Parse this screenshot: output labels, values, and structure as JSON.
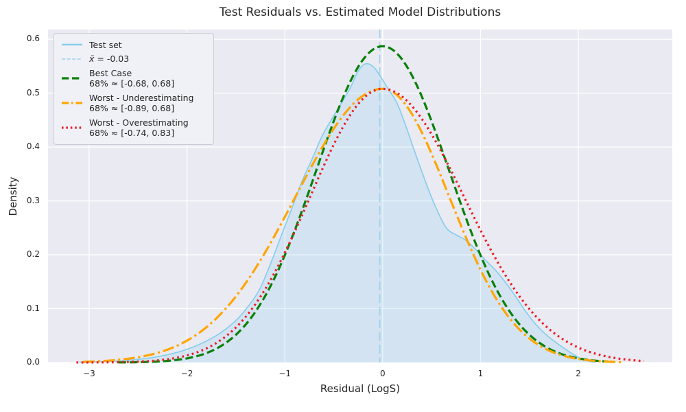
{
  "chart_data": {
    "type": "line",
    "title": "Test Residuals vs. Estimated Model Distributions",
    "xlabel": "Residual (LogS)",
    "ylabel": "Density",
    "xlim": [
      -3.42,
      2.96
    ],
    "ylim": [
      0,
      0.618
    ],
    "grid": true,
    "legend_position": "upper left",
    "xticks": [
      -3,
      -2,
      -1,
      0,
      1,
      2
    ],
    "xtick_labels": [
      "−3",
      "−2",
      "−1",
      "0",
      "1",
      "2"
    ],
    "yticks": [
      0.0,
      0.1,
      0.2,
      0.3,
      0.4,
      0.5,
      0.6
    ],
    "ytick_labels": [
      "0.0",
      "0.1",
      "0.2",
      "0.3",
      "0.4",
      "0.5",
      "0.6"
    ],
    "colors": {
      "figure_bg": "#FFFFFF",
      "axes_bg": "#EAEAF2",
      "grid": "#FFFFFF",
      "text": "#262626"
    },
    "mean_line": {
      "x": -0.03,
      "label": "x̄ = -0.03",
      "color": "#9ED2EC",
      "dash": "dashed",
      "width": 1.8
    },
    "series": [
      {
        "name": "Test set",
        "kind": "kde",
        "color": "#87CEEB",
        "fill": "rgba(135,206,235,0.22)",
        "dash": "solid",
        "width": 1.7,
        "points": [
          [
            -3.1,
            0.0005
          ],
          [
            -2.9,
            0.0015
          ],
          [
            -2.7,
            0.003
          ],
          [
            -2.5,
            0.006
          ],
          [
            -2.3,
            0.011
          ],
          [
            -2.1,
            0.019
          ],
          [
            -1.95,
            0.028
          ],
          [
            -1.8,
            0.04
          ],
          [
            -1.65,
            0.056
          ],
          [
            -1.5,
            0.078
          ],
          [
            -1.38,
            0.103
          ],
          [
            -1.26,
            0.135
          ],
          [
            -1.14,
            0.186
          ],
          [
            -1.02,
            0.243
          ],
          [
            -0.92,
            0.29
          ],
          [
            -0.82,
            0.338
          ],
          [
            -0.72,
            0.378
          ],
          [
            -0.62,
            0.42
          ],
          [
            -0.52,
            0.452
          ],
          [
            -0.42,
            0.482
          ],
          [
            -0.33,
            0.51
          ],
          [
            -0.26,
            0.538
          ],
          [
            -0.2,
            0.552
          ],
          [
            -0.14,
            0.554
          ],
          [
            -0.08,
            0.546
          ],
          [
            -0.02,
            0.53
          ],
          [
            0.05,
            0.51
          ],
          [
            0.15,
            0.48
          ],
          [
            0.25,
            0.432
          ],
          [
            0.35,
            0.38
          ],
          [
            0.46,
            0.325
          ],
          [
            0.55,
            0.285
          ],
          [
            0.65,
            0.25
          ],
          [
            0.75,
            0.237
          ],
          [
            0.85,
            0.227
          ],
          [
            0.95,
            0.21
          ],
          [
            1.05,
            0.19
          ],
          [
            1.15,
            0.172
          ],
          [
            1.25,
            0.15
          ],
          [
            1.35,
            0.125
          ],
          [
            1.45,
            0.098
          ],
          [
            1.55,
            0.074
          ],
          [
            1.65,
            0.055
          ],
          [
            1.75,
            0.04
          ],
          [
            1.85,
            0.027
          ],
          [
            1.95,
            0.015
          ],
          [
            2.03,
            0.007
          ],
          [
            2.12,
            0.002
          ],
          [
            2.18,
            0.0005
          ]
        ]
      },
      {
        "name": "Best Case",
        "interval_label": "68% ≈ [-0.68, 0.68]",
        "kind": "gaussian",
        "mu": 0,
        "sigma": 0.68,
        "peak": 0.587,
        "range": [
          -2.7,
          2.33
        ],
        "color": "#088008",
        "dash": "dashed",
        "width": 3.2
      },
      {
        "name": "Worst - Underestimating",
        "interval_label": "68% ≈ [-0.89, 0.68]",
        "kind": "split-gaussian",
        "mu": 0,
        "sigma_left": 0.89,
        "sigma_right": 0.68,
        "peak": 0.508,
        "range": [
          -3.06,
          2.5
        ],
        "color": "#FFA500",
        "dash": "dashdot",
        "width": 3.2
      },
      {
        "name": "Worst - Overestimating",
        "interval_label": "68% ≈ [-0.74, 0.83]",
        "kind": "split-gaussian",
        "mu": 0,
        "sigma_left": 0.74,
        "sigma_right": 0.83,
        "peak": 0.508,
        "range": [
          -3.13,
          2.69
        ],
        "color": "#ED1C24",
        "dash": "dotted",
        "width": 3.2
      }
    ]
  },
  "legend": {
    "items": [
      {
        "label": "Test set",
        "color": "#87CEEB",
        "dash": "solid",
        "width": 2.6
      },
      {
        "symbol": "x̄",
        "rest": " = -0.03",
        "color": "#9ED2EC",
        "dash": "dashed",
        "width": 1.6
      },
      {
        "label": "Best Case",
        "sublabel": "68% ≈ [-0.68, 0.68]",
        "color": "#088008",
        "dash": "dashed",
        "width": 3.2
      },
      {
        "label": "Worst - Underestimating",
        "sublabel": "68% ≈ [-0.89, 0.68]",
        "color": "#FFA500",
        "dash": "dashdot",
        "width": 3.2
      },
      {
        "label": "Worst - Overestimating",
        "sublabel": "68% ≈ [-0.74, 0.83]",
        "color": "#ED1C24",
        "dash": "dotted",
        "width": 3.2
      }
    ]
  }
}
